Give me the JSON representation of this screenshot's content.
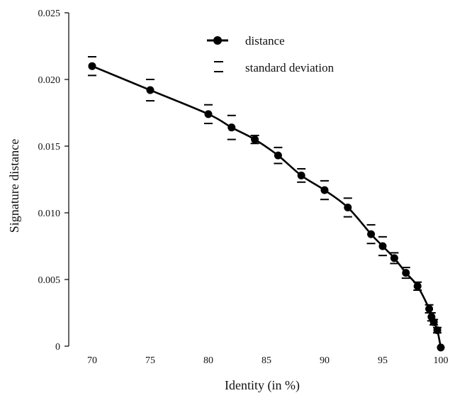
{
  "chart_data": {
    "type": "line",
    "title": "",
    "xlabel": "Identity (in %)",
    "ylabel": "Signature distance",
    "xlim": [
      67,
      101
    ],
    "ylim": [
      0,
      0.025
    ],
    "x_ticks": [
      70,
      75,
      80,
      85,
      90,
      95,
      100
    ],
    "x_tick_labels": [
      "70",
      "75",
      "80",
      "85",
      "90",
      "95",
      "100"
    ],
    "y_ticks": [
      0,
      0.005,
      0.01,
      0.015,
      0.02,
      0.025
    ],
    "y_tick_labels": [
      "0",
      "0.005",
      "0.010",
      "0.015",
      "0.020",
      "0.025"
    ],
    "grid": false,
    "legend_position": "top-right",
    "legend": {
      "distance_label": "distance",
      "std_label": "standard deviation"
    },
    "series": [
      {
        "name": "distance",
        "color": "#000000",
        "points": [
          {
            "x": 70,
            "y": 0.021,
            "sd": 0.0007
          },
          {
            "x": 75,
            "y": 0.0192,
            "sd": 0.0008
          },
          {
            "x": 80,
            "y": 0.0174,
            "sd": 0.0007
          },
          {
            "x": 82,
            "y": 0.0164,
            "sd": 0.0009
          },
          {
            "x": 84,
            "y": 0.0155,
            "sd": 0.0003
          },
          {
            "x": 86,
            "y": 0.0143,
            "sd": 0.0006
          },
          {
            "x": 88,
            "y": 0.0128,
            "sd": 0.0005
          },
          {
            "x": 90,
            "y": 0.0117,
            "sd": 0.0007
          },
          {
            "x": 92,
            "y": 0.0104,
            "sd": 0.0007
          },
          {
            "x": 94,
            "y": 0.0084,
            "sd": 0.0007
          },
          {
            "x": 95,
            "y": 0.0075,
            "sd": 0.0007
          },
          {
            "x": 96,
            "y": 0.0066,
            "sd": 0.0004
          },
          {
            "x": 97,
            "y": 0.0055,
            "sd": 0.0004
          },
          {
            "x": 98,
            "y": 0.0045,
            "sd": 0.0003
          },
          {
            "x": 99,
            "y": 0.0028,
            "sd": 0.0003
          },
          {
            "x": 99.2,
            "y": 0.0022,
            "sd": 0.0003
          },
          {
            "x": 99.4,
            "y": 0.0018,
            "sd": 0.0002
          },
          {
            "x": 99.7,
            "y": 0.0012,
            "sd": 0.0002
          },
          {
            "x": 100,
            "y": -0.0001,
            "sd": 0
          }
        ]
      }
    ]
  }
}
